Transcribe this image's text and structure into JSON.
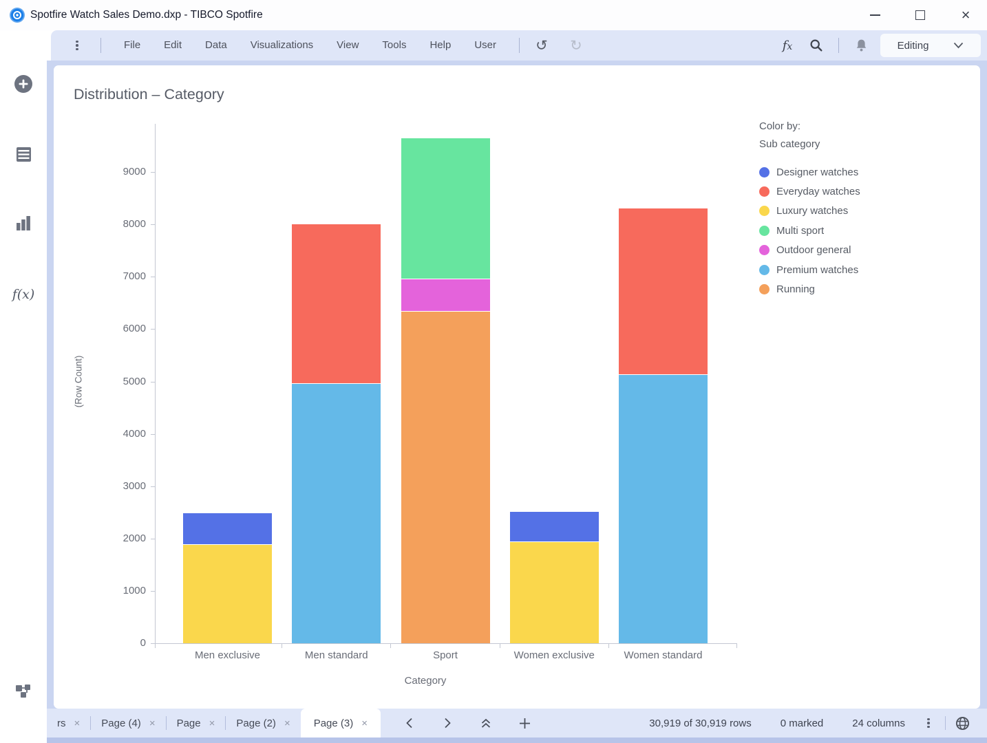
{
  "window": {
    "title": "Spotfire Watch Sales Demo.dxp - TIBCO Spotfire"
  },
  "menubar": {
    "items": [
      "File",
      "Edit",
      "Data",
      "Visualizations",
      "View",
      "Tools",
      "Help",
      "User"
    ],
    "editing_label": "Editing"
  },
  "sidebar": {
    "items": [
      {
        "name": "add",
        "icon": "plus-circle-icon"
      },
      {
        "name": "data",
        "icon": "data-table-icon"
      },
      {
        "name": "visualization-types",
        "icon": "bar-chart-icon"
      },
      {
        "name": "functions",
        "icon": "fx-icon",
        "glyph": "f(x)"
      },
      {
        "name": "data-canvas",
        "icon": "data-canvas-icon"
      }
    ]
  },
  "chart_data": {
    "type": "bar",
    "stacked": true,
    "title": "Distribution – Category",
    "xlabel": "Category",
    "ylabel": "(Row Count)",
    "ylim": [
      0,
      10000
    ],
    "yticks": [
      0,
      1000,
      2000,
      3000,
      4000,
      5000,
      6000,
      7000,
      8000,
      9000
    ],
    "grid": false,
    "legend_position": "right",
    "categories": [
      "Men exclusive",
      "Men standard",
      "Sport",
      "Women exclusive",
      "Women standard"
    ],
    "series": [
      {
        "name": "Luxury watches",
        "color": "#FAD74C",
        "values": [
          1880,
          0,
          0,
          1930,
          0
        ]
      },
      {
        "name": "Designer watches",
        "color": "#5471E6",
        "values": [
          600,
          0,
          0,
          580,
          0
        ]
      },
      {
        "name": "Premium watches",
        "color": "#64B9E8",
        "values": [
          0,
          4950,
          0,
          0,
          5130
        ]
      },
      {
        "name": "Everyday watches",
        "color": "#F76A5C",
        "values": [
          0,
          3050,
          0,
          0,
          3170
        ]
      },
      {
        "name": "Running",
        "color": "#F4A05B",
        "values": [
          0,
          0,
          6340,
          0,
          0
        ]
      },
      {
        "name": "Outdoor general",
        "color": "#E463DB",
        "values": [
          0,
          0,
          610,
          0,
          0
        ]
      },
      {
        "name": "Multi sport",
        "color": "#67E59F",
        "values": [
          0,
          0,
          2700,
          0,
          0
        ]
      }
    ],
    "stack_order_note": "series listed bottom-to-top per category",
    "totals": [
      2480,
      8000,
      9650,
      2510,
      8300
    ]
  },
  "legend": {
    "title_line1": "Color by:",
    "title_line2": "Sub category",
    "items": [
      {
        "label": "Designer watches",
        "color": "#5471E6"
      },
      {
        "label": "Everyday watches",
        "color": "#F76A5C"
      },
      {
        "label": "Luxury watches",
        "color": "#FAD74C"
      },
      {
        "label": "Multi sport",
        "color": "#67E59F"
      },
      {
        "label": "Outdoor general",
        "color": "#E463DB"
      },
      {
        "label": "Premium watches",
        "color": "#64B9E8"
      },
      {
        "label": "Running",
        "color": "#F4A05B"
      }
    ]
  },
  "statusbar": {
    "tabs": [
      {
        "label": "rs",
        "active": false,
        "truncated": true
      },
      {
        "label": "Page (4)",
        "active": false
      },
      {
        "label": "Page",
        "active": false
      },
      {
        "label": "Page (2)",
        "active": false
      },
      {
        "label": "Page (3)",
        "active": true
      }
    ],
    "close_glyph": "×",
    "rows_text": "30,919 of 30,919 rows",
    "marked_text": "0 marked",
    "columns_text": "24 columns"
  },
  "icons": {
    "titlebar": [
      "spotfire-logo",
      "minimize-icon",
      "maximize-icon",
      "close-icon"
    ],
    "menubar": [
      "kebab-menu-icon",
      "undo-icon",
      "redo-icon",
      "fx-icon",
      "search-icon",
      "bell-icon",
      "chevron-down-icon"
    ],
    "statusbar": [
      "chevron-left-icon",
      "chevron-right-icon",
      "double-chevron-up-icon",
      "plus-icon",
      "kebab-menu-icon",
      "globe-icon"
    ]
  },
  "colors": {
    "chrome_bar": "#dfe6f8",
    "frame": "#cad5f1",
    "canvas": "#ffffff",
    "axis": "#c3c7d2"
  }
}
